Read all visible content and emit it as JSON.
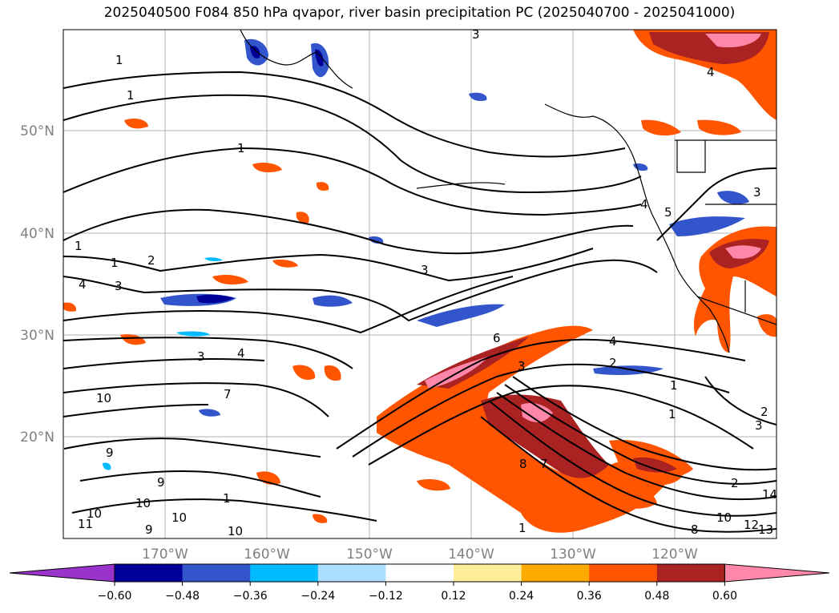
{
  "title": "2025040500 F084 850 hPa qvapor, river basin precipitation PC (2025040700 - 2025041000)",
  "lat_labels": [
    "50°N",
    "40°N",
    "30°N",
    "20°N"
  ],
  "lon_labels": [
    "170°W",
    "160°W",
    "150°W",
    "140°W",
    "130°W",
    "120°W"
  ],
  "colorbar": {
    "colors": [
      "#9933cc",
      "#000099",
      "#3355cc",
      "#00bbff",
      "#aaddff",
      "#ffffff",
      "#ffee99",
      "#ffaa00",
      "#ff5500",
      "#aa2222",
      "#ff88aa"
    ],
    "tick_labels": [
      "−0.60",
      "−0.48",
      "−0.36",
      "−0.24",
      "−0.12",
      "0.12",
      "0.24",
      "0.36",
      "0.48",
      "0.60"
    ]
  },
  "contour_labels": [
    "1",
    "1",
    "1",
    "3",
    "4",
    "4",
    "5",
    "3",
    "1",
    "1",
    "2",
    "3",
    "4",
    "3",
    "6",
    "4",
    "3",
    "2",
    "4",
    "2",
    "1",
    "10",
    "7",
    "2",
    "3",
    "9",
    "9",
    "10",
    "8",
    "7",
    "1",
    "10",
    "10",
    "11",
    "9",
    "10",
    "1",
    "14",
    "12",
    "13",
    "8",
    "10",
    "3",
    "1"
  ]
}
